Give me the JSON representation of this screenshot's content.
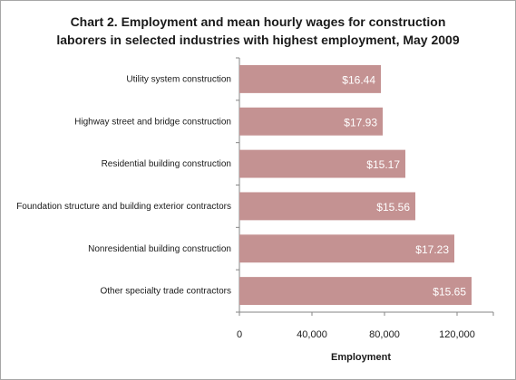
{
  "chart_data": {
    "type": "bar",
    "orientation": "horizontal",
    "title_lines": [
      "Chart 2. Employment and mean hourly wages for construction",
      "laborers in selected industries with highest employment, May 2009"
    ],
    "categories": [
      "Utility system construction",
      "Highway street and bridge construction",
      "Residential building construction",
      "Foundation structure and building exterior contractors",
      "Nonresidential building construction",
      "Other specialty trade contractors"
    ],
    "values": [
      78000,
      79000,
      91500,
      97000,
      118500,
      128000
    ],
    "data_labels": [
      "$16.44",
      "$17.93",
      "$15.17",
      "$15.56",
      "$17.23",
      "$15.65"
    ],
    "xlabel": "Employment",
    "ylabel": "",
    "xlim": [
      0,
      140000
    ],
    "x_ticks": [
      0,
      40000,
      80000,
      120000
    ],
    "x_tick_labels": [
      "0",
      "40,000",
      "80,000",
      "120,000"
    ],
    "grid": false,
    "legend": "none",
    "bar_color": "#c49292"
  }
}
